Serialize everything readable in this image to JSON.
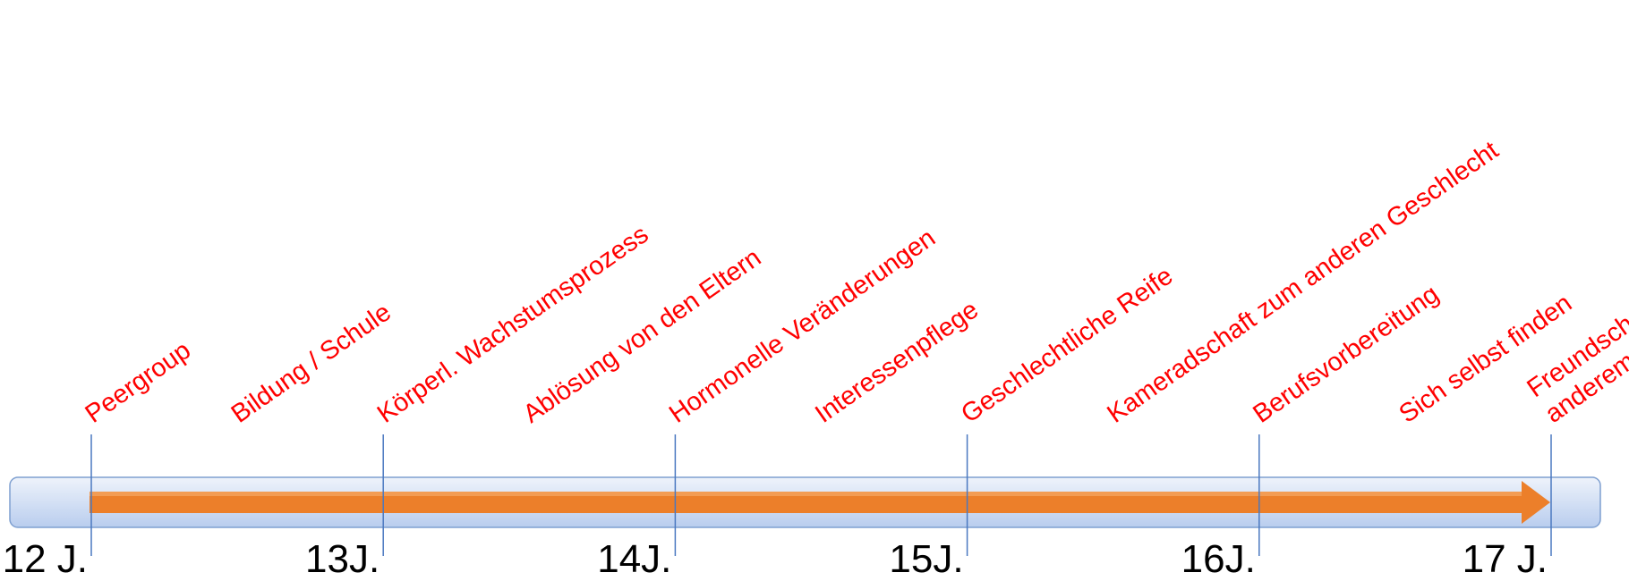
{
  "colors": {
    "bar_fill_top": "#eef3fb",
    "bar_fill_bottom": "#b9cdee",
    "bar_stroke": "#7e9fd0",
    "arrow": "#ec7f2a",
    "arrow_highlight": "#f6a865",
    "tick": "#4a78c0",
    "topic_text": "#ff0000",
    "year_text": "#000000"
  },
  "timeline": {
    "start_year": 12,
    "end_year": 17,
    "ticks": [
      {
        "year": 12,
        "label": "12 J."
      },
      {
        "year": 13,
        "label": "13J."
      },
      {
        "year": 14,
        "label": "14J."
      },
      {
        "year": 15,
        "label": "15J."
      },
      {
        "year": 16,
        "label": "16J."
      },
      {
        "year": 17,
        "label": "17 J."
      }
    ]
  },
  "topics": [
    {
      "year": 12.0,
      "lines": [
        "Peergroup"
      ]
    },
    {
      "year": 12.5,
      "lines": [
        "Bildung / Schule"
      ]
    },
    {
      "year": 13.0,
      "lines": [
        "Körperl. Wachstumsprozess"
      ]
    },
    {
      "year": 13.5,
      "lines": [
        "Ablösung von den Eltern"
      ]
    },
    {
      "year": 14.0,
      "lines": [
        "Hormonelle Veränderungen"
      ]
    },
    {
      "year": 14.5,
      "lines": [
        "Interessenpflege"
      ]
    },
    {
      "year": 15.0,
      "lines": [
        "Geschlechtliche Reife"
      ]
    },
    {
      "year": 15.5,
      "lines": [
        "Kameradschaft zum anderen Geschlecht"
      ]
    },
    {
      "year": 16.0,
      "lines": [
        "Berufsvorbereitung"
      ]
    },
    {
      "year": 16.5,
      "lines": [
        "Sich selbst finden"
      ]
    },
    {
      "year": 17.0,
      "lines": [
        "Freundschaft mit",
        "anderem Geschlecht"
      ]
    }
  ]
}
